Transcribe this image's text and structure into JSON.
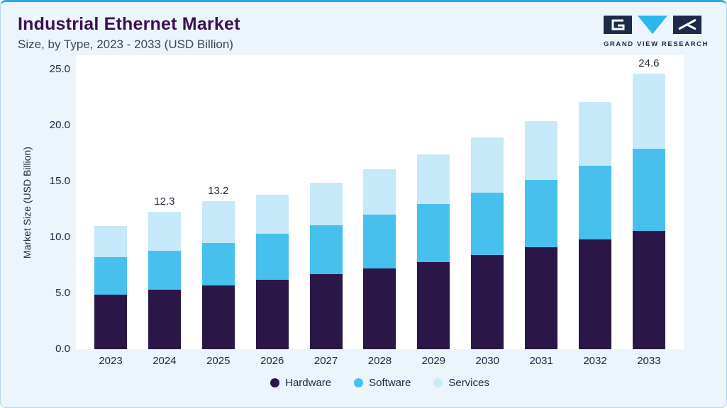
{
  "page": {
    "title": "Industrial Ethernet Market",
    "subtitle": "Size, by Type, 2023 - 2033 (USD Billion)"
  },
  "logo": {
    "text": "GRAND VIEW RESEARCH"
  },
  "theme": {
    "accent": "#2AA9E0",
    "card_bg": "#ECF5FB",
    "title_color": "#3C1053",
    "logo_navy": "#1C2B4A",
    "logo_cyan": "#2BB7EE"
  },
  "chart_data": {
    "type": "bar",
    "stacked": true,
    "title": "Industrial Ethernet Market Size, by Type, 2023 - 2033 (USD Billion)",
    "categories": [
      "2023",
      "2024",
      "2025",
      "2026",
      "2027",
      "2028",
      "2029",
      "2030",
      "2031",
      "2032",
      "2033"
    ],
    "series": [
      {
        "name": "Hardware",
        "color": "#2B1747",
        "values": [
          4.9,
          5.3,
          5.7,
          6.2,
          6.7,
          7.2,
          7.8,
          8.4,
          9.1,
          9.8,
          10.6
        ]
      },
      {
        "name": "Software",
        "color": "#47C0ED",
        "values": [
          3.3,
          3.5,
          3.8,
          4.1,
          4.4,
          4.8,
          5.2,
          5.6,
          6.0,
          6.6,
          7.3
        ]
      },
      {
        "name": "Services",
        "color": "#C6E9FA",
        "values": [
          2.8,
          3.5,
          3.7,
          3.5,
          3.8,
          4.1,
          4.4,
          4.9,
          5.3,
          5.7,
          6.7
        ]
      }
    ],
    "totals": [
      11.0,
      12.3,
      13.2,
      13.8,
      14.9,
      16.1,
      17.4,
      18.9,
      20.4,
      22.1,
      24.6
    ],
    "bar_labels": [
      "",
      "12.3",
      "13.2",
      "",
      "",
      "",
      "",
      "",
      "",
      "",
      "24.6"
    ],
    "ylabel": "Market Size (USD Billion)",
    "yticks": [
      "25.0",
      "20.0",
      "15.0",
      "10.0",
      "5.0",
      "0.0"
    ],
    "ylim": [
      0,
      25
    ],
    "grid": false,
    "legend_position": "bottom",
    "legend": [
      "Hardware",
      "Software",
      "Services"
    ]
  }
}
